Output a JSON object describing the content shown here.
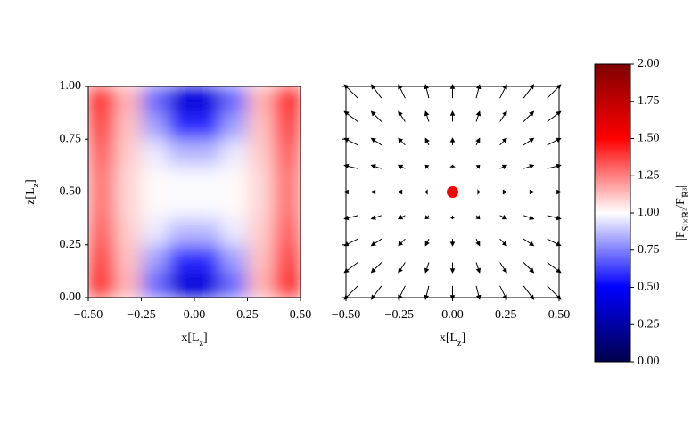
{
  "chart_data": [
    {
      "type": "heatmap",
      "origin": "lower",
      "values": [
        [
          1.45,
          1.15,
          0.7,
          0.4,
          0.4,
          0.7,
          1.15,
          1.45
        ],
        [
          1.38,
          1.12,
          0.82,
          0.58,
          0.58,
          0.82,
          1.12,
          1.38
        ],
        [
          1.32,
          1.1,
          0.96,
          0.86,
          0.86,
          0.96,
          1.1,
          1.32
        ],
        [
          1.28,
          1.08,
          1.01,
          0.99,
          0.99,
          1.01,
          1.08,
          1.28
        ],
        [
          1.28,
          1.08,
          1.01,
          0.99,
          0.99,
          1.01,
          1.08,
          1.28
        ],
        [
          1.32,
          1.1,
          0.96,
          0.86,
          0.86,
          0.96,
          1.1,
          1.32
        ],
        [
          1.38,
          1.12,
          0.82,
          0.58,
          0.58,
          0.82,
          1.12,
          1.38
        ],
        [
          1.45,
          1.15,
          0.7,
          0.4,
          0.4,
          0.7,
          1.15,
          1.45
        ]
      ],
      "xlim": [
        -0.5,
        0.5
      ],
      "ylim": [
        0,
        1
      ],
      "xticks": [
        {
          "value": -0.5,
          "label": "−0.50"
        },
        {
          "value": -0.25,
          "label": "−0.25"
        },
        {
          "value": 0,
          "label": "0.00"
        },
        {
          "value": 0.25,
          "label": "0.25"
        },
        {
          "value": 0.5,
          "label": "0.50"
        }
      ],
      "yticks": [
        {
          "value": 0,
          "label": "0.00"
        },
        {
          "value": 0.25,
          "label": "0.25"
        },
        {
          "value": 0.5,
          "label": "0.50"
        },
        {
          "value": 0.75,
          "label": "0.75"
        },
        {
          "value": 1,
          "label": "1.00"
        }
      ],
      "xlabel": [
        "x[L",
        "z",
        "]"
      ],
      "ylabel": [
        "z[L",
        "z",
        "]"
      ],
      "colormap": [
        "#00004c",
        "#0000ff",
        "#ffffff",
        "#ff0000",
        "#800000"
      ],
      "clim": [
        0,
        2
      ],
      "colorbar": {
        "ticks": [
          {
            "value": 0,
            "label": "0.00"
          },
          {
            "value": 0.25,
            "label": "0.25"
          },
          {
            "value": 0.5,
            "label": "0.50"
          },
          {
            "value": 0.75,
            "label": "0.75"
          },
          {
            "value": 1,
            "label": "1.00"
          },
          {
            "value": 1.25,
            "label": "1.25"
          },
          {
            "value": 1.5,
            "label": "1.50"
          },
          {
            "value": 1.75,
            "label": "1.75"
          },
          {
            "value": 2,
            "label": "2.00"
          }
        ],
        "label": [
          "|F",
          "S¹×ℝ²",
          "/F",
          "ℝ³",
          "|"
        ]
      }
    },
    {
      "type": "quiver",
      "xlim": [
        -0.5,
        0.5
      ],
      "ylim": [
        0,
        1
      ],
      "xticks": [
        {
          "value": -0.5,
          "label": "−0.50"
        },
        {
          "value": -0.25,
          "label": "−0.25"
        },
        {
          "value": 0,
          "label": "0.00"
        },
        {
          "value": 0.25,
          "label": "0.25"
        },
        {
          "value": 0.5,
          "label": "0.50"
        }
      ],
      "yticks": [
        0,
        0.25,
        0.5,
        0.75,
        1
      ],
      "ytick_labels": false,
      "xlabel": [
        "x[L",
        "z",
        "]"
      ],
      "color": "#000000",
      "u": [
        [
          -0.44,
          -0.33,
          -0.22,
          -0.11,
          0,
          0.11,
          0.22,
          0.33,
          0.44
        ],
        [
          -0.44,
          -0.33,
          -0.22,
          -0.11,
          0,
          0.11,
          0.22,
          0.33,
          0.44
        ],
        [
          -0.44,
          -0.33,
          -0.22,
          -0.11,
          0,
          0.11,
          0.22,
          0.33,
          0.44
        ],
        [
          -0.44,
          -0.33,
          -0.22,
          -0.11,
          0,
          0.11,
          0.22,
          0.33,
          0.44
        ],
        [
          -0.44,
          -0.33,
          -0.22,
          -0.11,
          0,
          0.11,
          0.22,
          0.33,
          0.44
        ],
        [
          -0.44,
          -0.33,
          -0.22,
          -0.11,
          0,
          0.11,
          0.22,
          0.33,
          0.44
        ],
        [
          -0.44,
          -0.33,
          -0.22,
          -0.11,
          0,
          0.11,
          0.22,
          0.33,
          0.44
        ],
        [
          -0.44,
          -0.33,
          -0.22,
          -0.11,
          0,
          0.11,
          0.22,
          0.33,
          0.44
        ],
        [
          -0.44,
          -0.33,
          -0.22,
          -0.11,
          0,
          0.11,
          0.22,
          0.33,
          0.44
        ]
      ],
      "v": [
        [
          -0.44,
          -0.44,
          -0.44,
          -0.44,
          -0.44,
          -0.44,
          -0.44,
          -0.44,
          -0.44
        ],
        [
          -0.33,
          -0.33,
          -0.33,
          -0.33,
          -0.33,
          -0.33,
          -0.33,
          -0.33,
          -0.33
        ],
        [
          -0.22,
          -0.22,
          -0.22,
          -0.22,
          -0.22,
          -0.22,
          -0.22,
          -0.22,
          -0.22
        ],
        [
          -0.11,
          -0.11,
          -0.11,
          -0.11,
          -0.11,
          -0.11,
          -0.11,
          -0.11,
          -0.11
        ],
        [
          0,
          0,
          0,
          0,
          0,
          0,
          0,
          0,
          0
        ],
        [
          0.11,
          0.11,
          0.11,
          0.11,
          0.11,
          0.11,
          0.11,
          0.11,
          0.11
        ],
        [
          0.22,
          0.22,
          0.22,
          0.22,
          0.22,
          0.22,
          0.22,
          0.22,
          0.22
        ],
        [
          0.33,
          0.33,
          0.33,
          0.33,
          0.33,
          0.33,
          0.33,
          0.33,
          0.33
        ],
        [
          0.44,
          0.44,
          0.44,
          0.44,
          0.44,
          0.44,
          0.44,
          0.44,
          0.44
        ]
      ],
      "points": {
        "x": [
          0
        ],
        "y": [
          0.5
        ],
        "color": "#ff0000"
      }
    }
  ]
}
